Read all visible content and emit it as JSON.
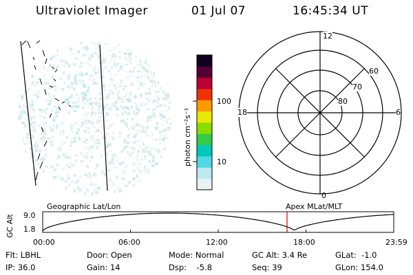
{
  "header": {
    "title": "Ultraviolet Imager",
    "date": "01 Jul 07",
    "time": "16:45:34 UT"
  },
  "colorbar": {
    "label": "photon cm⁻²s⁻¹",
    "ticks": [
      "100",
      "10"
    ],
    "colors": [
      "#e8f2f4",
      "#bde8ee",
      "#4fd8e6",
      "#00c8b8",
      "#33cc44",
      "#88dd00",
      "#e8e800",
      "#ff9900",
      "#ee3300",
      "#bb0033",
      "#550033",
      "#110022"
    ]
  },
  "polar_plot": {
    "mlt_labels": {
      "top": "12",
      "bottom": "0",
      "left": "18",
      "right": "6"
    },
    "lat_labels": [
      "60",
      "70",
      "80"
    ]
  },
  "timeline": {
    "left_label": "Geographic Lat/Lon",
    "right_label": "Apex MLat/MLT",
    "ylabel": "GC Alt",
    "y_ticks": [
      "9.0",
      "1.8"
    ],
    "x_ticks": [
      "00:00",
      "06:00",
      "12:00",
      "18:00",
      "23:59"
    ],
    "current_time_marker": "16:45:34"
  },
  "info": {
    "flt": "Flt: LBHL",
    "ip": "IP: 36.0",
    "door": "Door: Open",
    "gain": "Gain: 14",
    "mode": "Mode: Normal",
    "dsp": "Dsp:    -5.8",
    "gcalt": "GC Alt: 3.4 Re",
    "seq": "Seq: 39",
    "glat": "GLat:  -1.0",
    "glon": "GLon: 154.0"
  }
}
